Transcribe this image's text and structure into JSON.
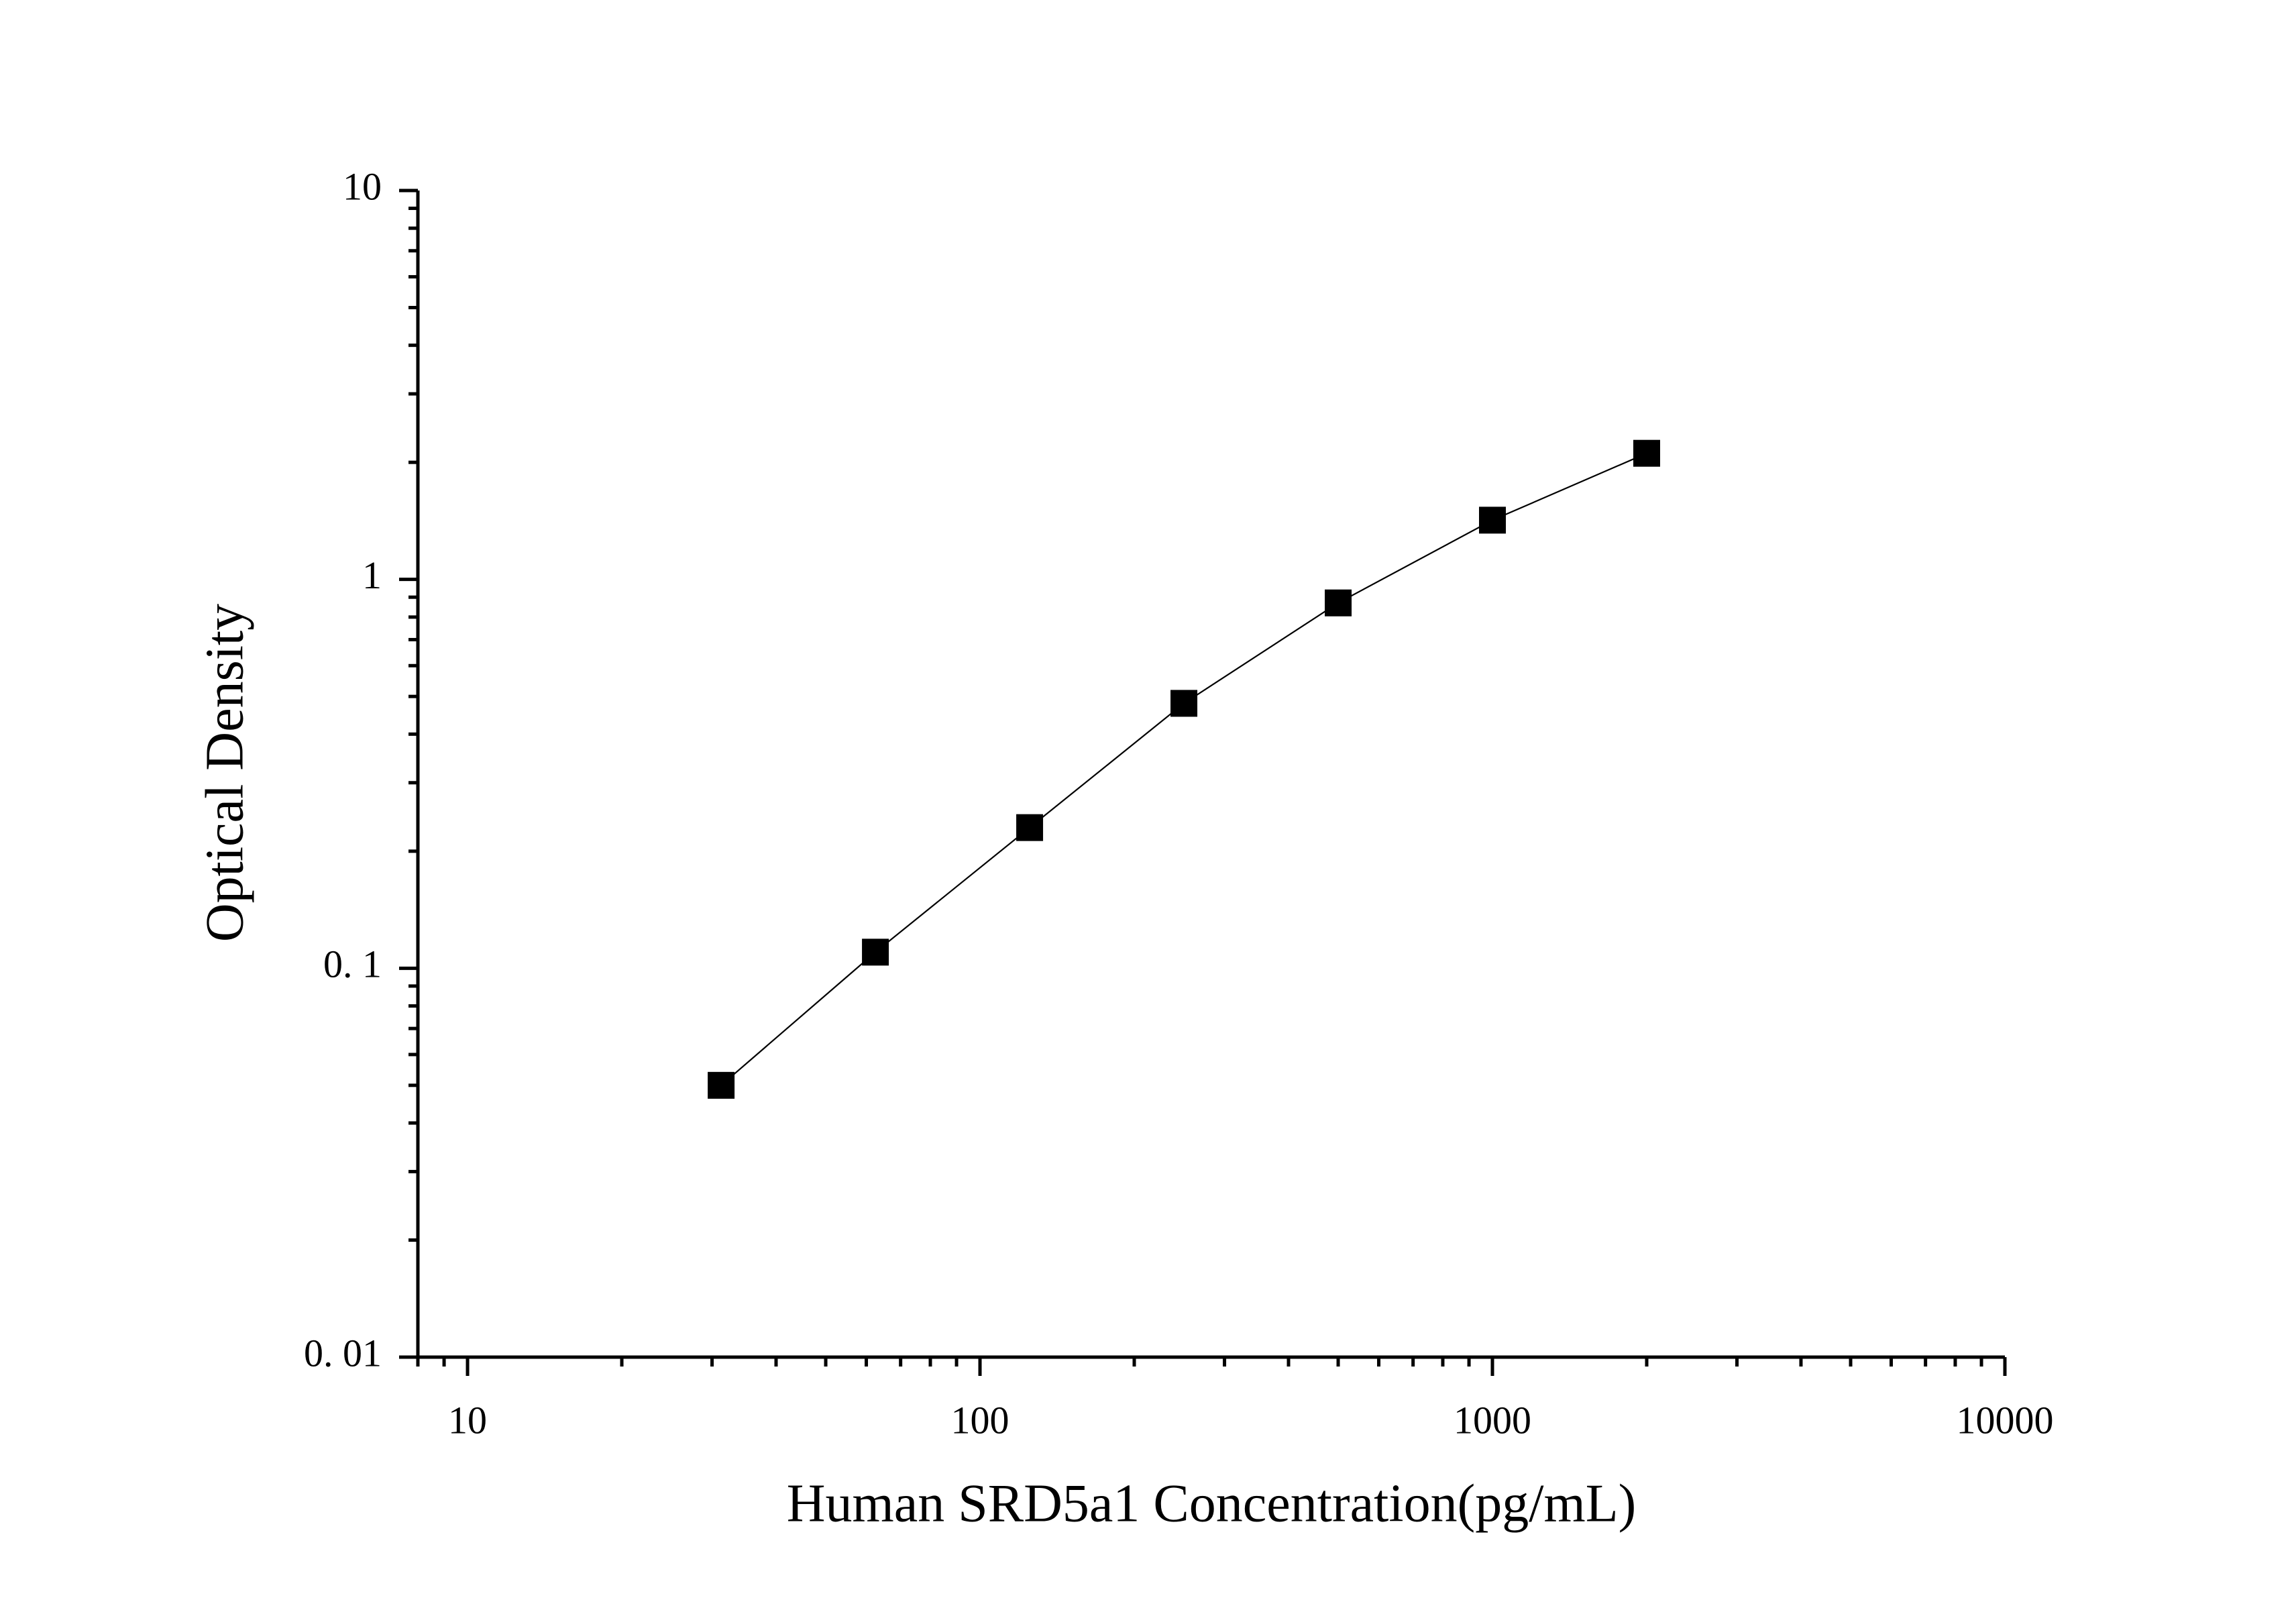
{
  "chart_data": {
    "type": "line",
    "x_label": "Human SRD5a1 Concentration(pg/mL)",
    "y_label": "Optical Density",
    "x": [
      31.25,
      62.5,
      125,
      250,
      500,
      1000,
      2000
    ],
    "values": [
      0.05,
      0.11,
      0.23,
      0.48,
      0.87,
      1.42,
      2.11
    ],
    "color": "#000000",
    "marker": "square",
    "xscale": "log",
    "yscale": "log",
    "xlim": [
      8,
      10000
    ],
    "ylim": [
      0.01,
      10
    ],
    "xticks": [
      10,
      100,
      1000,
      10000
    ],
    "yticks": [
      {
        "value": 0.01,
        "label": "0. 01"
      },
      {
        "value": 0.1,
        "label": "0. 1"
      },
      1,
      10
    ]
  }
}
